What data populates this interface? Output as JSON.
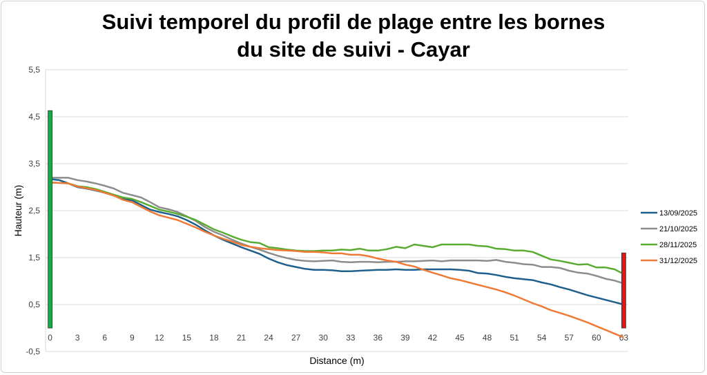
{
  "chart_data": {
    "type": "line",
    "title_lines": [
      "Suivi temporel du profil de plage entre les bornes",
      "du site de suivi - Cayar"
    ],
    "xlabel": "Distance (m)",
    "ylabel": "Hauteur (m)",
    "xlim": [
      -0.5,
      63.5
    ],
    "ylim": [
      -0.5,
      5.5
    ],
    "yticks": [
      -0.5,
      0.5,
      1.5,
      2.5,
      3.5,
      4.5,
      5.5
    ],
    "ytick_labels": [
      "-0,5",
      "0,5",
      "1,5",
      "2,5",
      "3,5",
      "4,5",
      "5,5"
    ],
    "xticks": [
      0,
      3,
      6,
      9,
      12,
      15,
      18,
      21,
      24,
      27,
      30,
      33,
      36,
      39,
      42,
      45,
      48,
      51,
      54,
      57,
      60,
      63
    ],
    "grid": "horizontal",
    "legend_position": "right",
    "markers": [
      {
        "name": "borne-debut",
        "x": 0,
        "y0": 0,
        "y1": 4.63,
        "color": "#1fa54a"
      },
      {
        "name": "borne-fin",
        "x": 63,
        "y0": 0,
        "y1": 1.6,
        "color": "#ee1111"
      }
    ],
    "series": [
      {
        "name": "13/09/2025",
        "color": "#1f5f8b",
        "values": [
          3.17,
          3.15,
          3.08,
          3.0,
          2.97,
          2.93,
          2.88,
          2.82,
          2.75,
          2.72,
          2.62,
          2.52,
          2.47,
          2.43,
          2.38,
          2.3,
          2.2,
          2.08,
          1.97,
          1.88,
          1.8,
          1.72,
          1.65,
          1.58,
          1.48,
          1.4,
          1.34,
          1.3,
          1.26,
          1.24,
          1.24,
          1.23,
          1.21,
          1.21,
          1.22,
          1.23,
          1.24,
          1.24,
          1.25,
          1.24,
          1.24,
          1.25,
          1.25,
          1.25,
          1.25,
          1.24,
          1.22,
          1.17,
          1.16,
          1.13,
          1.09,
          1.06,
          1.04,
          1.02,
          0.97,
          0.93,
          0.87,
          0.82,
          0.76,
          0.7,
          0.65,
          0.6,
          0.55,
          0.5
        ]
      },
      {
        "name": "21/10/2025",
        "color": "#8c8c8c",
        "values": [
          3.2,
          3.2,
          3.2,
          3.15,
          3.12,
          3.08,
          3.03,
          2.97,
          2.88,
          2.83,
          2.78,
          2.68,
          2.57,
          2.53,
          2.47,
          2.38,
          2.28,
          2.15,
          2.05,
          1.97,
          1.88,
          1.8,
          1.73,
          1.67,
          1.6,
          1.54,
          1.49,
          1.45,
          1.43,
          1.42,
          1.43,
          1.44,
          1.41,
          1.4,
          1.41,
          1.41,
          1.4,
          1.41,
          1.41,
          1.42,
          1.42,
          1.43,
          1.44,
          1.42,
          1.44,
          1.44,
          1.44,
          1.44,
          1.43,
          1.45,
          1.41,
          1.39,
          1.36,
          1.35,
          1.3,
          1.3,
          1.28,
          1.22,
          1.18,
          1.16,
          1.11,
          1.05,
          1.01,
          0.95
        ]
      },
      {
        "name": "28/11/2025",
        "color": "#5aab32",
        "values": [
          3.1,
          3.09,
          3.08,
          3.02,
          3.0,
          2.96,
          2.9,
          2.84,
          2.78,
          2.75,
          2.68,
          2.6,
          2.52,
          2.48,
          2.43,
          2.37,
          2.3,
          2.2,
          2.1,
          2.03,
          1.95,
          1.88,
          1.83,
          1.81,
          1.72,
          1.7,
          1.67,
          1.65,
          1.64,
          1.64,
          1.65,
          1.65,
          1.67,
          1.66,
          1.69,
          1.65,
          1.65,
          1.68,
          1.73,
          1.7,
          1.78,
          1.75,
          1.72,
          1.78,
          1.78,
          1.78,
          1.78,
          1.75,
          1.74,
          1.69,
          1.68,
          1.65,
          1.65,
          1.62,
          1.54,
          1.46,
          1.43,
          1.39,
          1.35,
          1.36,
          1.29,
          1.29,
          1.25,
          1.15
        ]
      },
      {
        "name": "31/12/2025",
        "color": "#ef7a35",
        "values": [
          3.1,
          3.09,
          3.08,
          3.01,
          2.98,
          2.94,
          2.88,
          2.82,
          2.73,
          2.68,
          2.58,
          2.48,
          2.4,
          2.35,
          2.3,
          2.22,
          2.14,
          2.05,
          1.97,
          1.9,
          1.84,
          1.77,
          1.73,
          1.7,
          1.68,
          1.66,
          1.65,
          1.64,
          1.62,
          1.62,
          1.61,
          1.59,
          1.59,
          1.56,
          1.56,
          1.53,
          1.48,
          1.44,
          1.41,
          1.35,
          1.31,
          1.24,
          1.18,
          1.12,
          1.06,
          1.02,
          0.97,
          0.92,
          0.87,
          0.82,
          0.76,
          0.69,
          0.61,
          0.53,
          0.46,
          0.38,
          0.32,
          0.26,
          0.19,
          0.12,
          0.04,
          -0.04,
          -0.12,
          -0.2
        ]
      }
    ]
  }
}
